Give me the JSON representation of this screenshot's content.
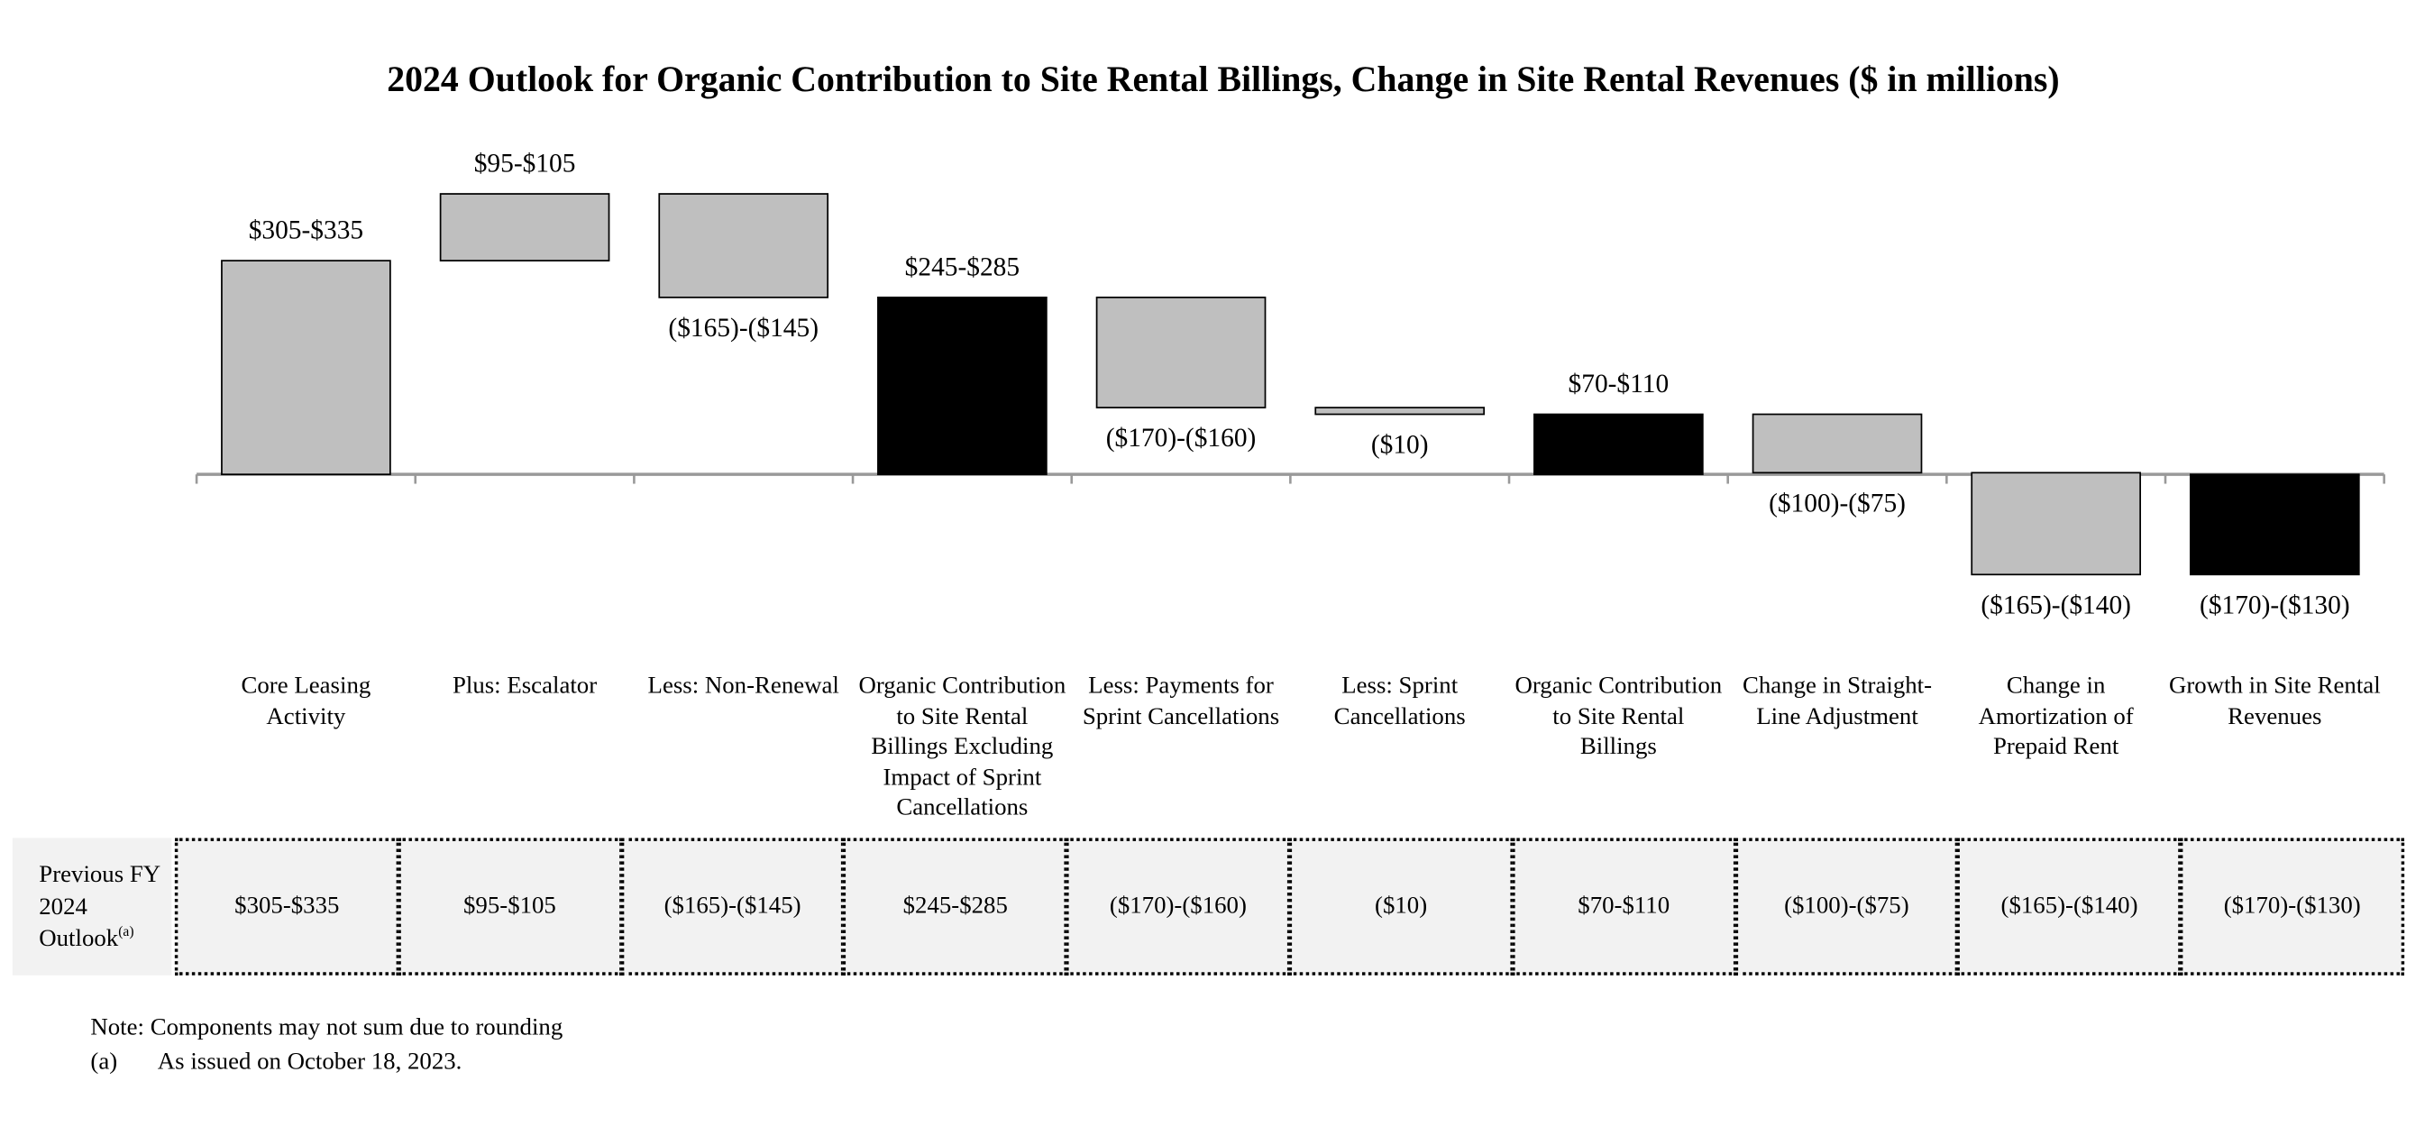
{
  "chart_data": {
    "type": "waterfall",
    "title": "2024 Outlook for Organic Contribution to Site Rental Billings, Change in Site Rental Revenues ($ in millions)",
    "categories": [
      "Core Leasing Activity",
      "Plus: Escalator",
      "Less: Non-Renewal",
      "Organic Contribution to Site Rental Billings Excluding Impact of Sprint Cancellations",
      "Less: Payments for Sprint Cancellations",
      "Less: Sprint Cancellations",
      "Organic Contribution to Site Rental Billings",
      "Change in Straight-Line Adjustment",
      "Change in Amortization of Prepaid Rent",
      "Growth in Site Rental Revenues"
    ],
    "values": [
      320,
      100,
      -155,
      265,
      -165,
      -10,
      90,
      -87.5,
      -152.5,
      -150
    ],
    "value_labels": [
      "$305-$335",
      "$95-$105",
      "($165)-($145)",
      "$245-$285",
      "($170)-($160)",
      "($10)",
      "$70-$110",
      "($100)-($75)",
      "($165)-($140)",
      "($170)-($130)"
    ],
    "is_total": [
      false,
      false,
      false,
      true,
      false,
      false,
      true,
      false,
      false,
      true
    ],
    "color": "#bfbfbf",
    "total_color": "#000000",
    "ylim": [
      -200,
      500
    ],
    "previous_outlook": {
      "label": "Previous FY 2024 Outlook",
      "footnote_marker": "(a)",
      "values": [
        "$305-$335",
        "$95-$105",
        "($165)-($145)",
        "$245-$285",
        "($170)-($160)",
        "($10)",
        "$70-$110",
        "($100)-($75)",
        "($165)-($140)",
        "($170)-($130)"
      ]
    },
    "note": "Note: Components may not sum due to rounding",
    "footnote": {
      "marker": "(a)",
      "text": "As issued on October 18, 2023."
    }
  }
}
